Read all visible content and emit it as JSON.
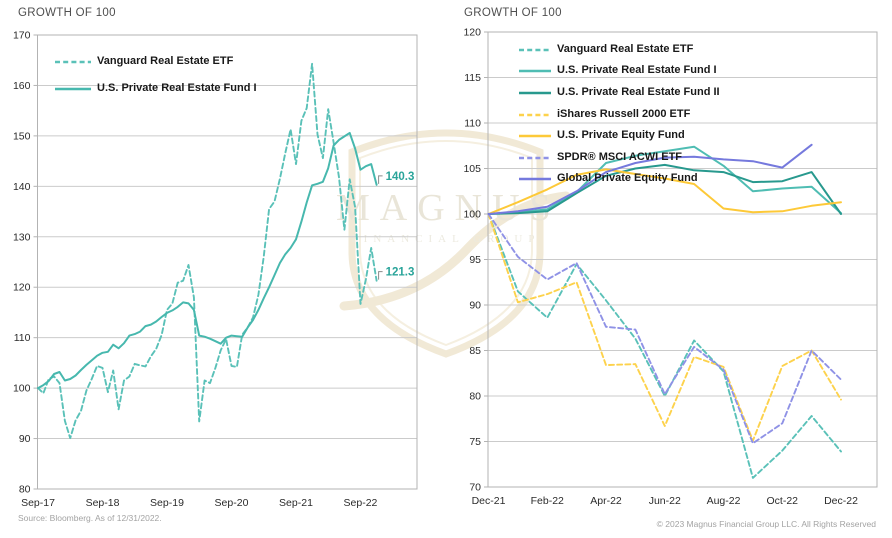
{
  "page": {
    "background": "#ffffff"
  },
  "watermark": {
    "name": "MAGNUS",
    "subtitle": "FINANCIAL GROUP",
    "shield_color": "#f1e9d6",
    "text_color": "#e9e5d8"
  },
  "footer": {
    "source": "Source: Bloomberg. As of 12/31/2022.",
    "copyright": "© 2023 Magnus Financial Group LLC. All Rights Reserved"
  },
  "colors": {
    "grid": "#cbcbcb",
    "plot_border": "#b3b3b3",
    "annotation_teal": "#2aa49a",
    "title_gray": "#4f4f4f",
    "footer_gray": "#a3a3a3"
  },
  "chart_data": [
    {
      "type": "line",
      "title": "GROWTH OF 100",
      "x_tick_labels": [
        "Sep-17",
        "Sep-18",
        "Sep-19",
        "Sep-20",
        "Sep-21",
        "Sep-22"
      ],
      "x_tick_indices": [
        0,
        12,
        24,
        36,
        48,
        60
      ],
      "x_count": 64,
      "x_unit": "monthly, Sep-2017 through Dec-2022",
      "ylim": [
        80,
        170
      ],
      "ytick_step": 10,
      "grid": "horizontal",
      "legend_position": "top-left-inside",
      "series": [
        {
          "name": "Vanguard Real Estate ETF",
          "color": "#5ac1b8",
          "dash": true,
          "values": [
            100,
            99,
            101.8,
            102.3,
            101,
            93.5,
            90.1,
            93.6,
            95.5,
            99.5,
            101.8,
            104.4,
            104,
            99.2,
            103.5,
            95.8,
            101.5,
            102.3,
            104.8,
            104.5,
            104.3,
            106.3,
            107.8,
            110.5,
            115.5,
            116.8,
            120.9,
            121.3,
            124.4,
            118,
            93.4,
            101.5,
            101,
            104,
            107.5,
            109.7,
            104.4,
            104.2,
            110.6,
            112,
            114,
            118.5,
            126,
            135.5,
            137,
            141.5,
            146.5,
            151.3,
            144.4,
            153,
            155.5,
            164.3,
            150.3,
            145.6,
            155.3,
            148.7,
            141.8,
            131.4,
            141.4,
            135.9,
            116.7,
            121.6,
            127.8,
            121.3
          ]
        },
        {
          "name": "U.S. Private Real Estate Fund I",
          "color": "#47b8ae",
          "dash": false,
          "values": [
            100,
            100.6,
            101.4,
            102.8,
            103.2,
            101.5,
            101.8,
            102.5,
            103.6,
            104.6,
            105.5,
            106.4,
            107,
            107.2,
            108.6,
            107.9,
            108.9,
            110.4,
            110.7,
            111.2,
            112.3,
            112.6,
            113.2,
            114.1,
            114.9,
            115.4,
            116.1,
            117,
            116.8,
            115.5,
            110.4,
            110.2,
            109.8,
            109.3,
            108.8,
            110,
            110.4,
            110.3,
            110.2,
            112,
            113.5,
            115.5,
            117.8,
            120,
            122.4,
            124.8,
            126.5,
            127.8,
            129.5,
            133,
            136.8,
            140.2,
            140.5,
            140.9,
            143.6,
            148.1,
            149.2,
            149.9,
            150.6,
            147.5,
            143.3,
            144,
            144.4,
            140.3
          ]
        }
      ],
      "annotations": [
        {
          "text": "140.3",
          "series_index": 1,
          "color": "#2aa49a"
        },
        {
          "text": "121.3",
          "series_index": 0,
          "color": "#2aa49a"
        }
      ]
    },
    {
      "type": "line",
      "title": "GROWTH OF 100",
      "x_tick_labels": [
        "Dec-21",
        "Feb-22",
        "Apr-22",
        "Jun-22",
        "Aug-22",
        "Oct-22",
        "Dec-22"
      ],
      "x_tick_indices": [
        0,
        2,
        4,
        6,
        8,
        10,
        12
      ],
      "x_count": 13,
      "x_unit": "monthly, Dec-2021 through Dec-2022",
      "ylim": [
        70,
        120
      ],
      "ytick_step": 5,
      "grid": "horizontal",
      "legend_position": "top-left-inside",
      "series": [
        {
          "name": "Vanguard Real Estate ETF",
          "color": "#5ac1b8",
          "dash": true,
          "values": [
            100,
            91.5,
            88.6,
            94.5,
            90.5,
            86.3,
            80,
            86.1,
            82.7,
            71,
            74,
            77.8,
            73.9
          ]
        },
        {
          "name": "U.S. Private Real Estate Fund I",
          "color": "#4fbdb3",
          "dash": false,
          "values": [
            100,
            100.2,
            100.5,
            102.4,
            105.6,
            106.4,
            106.9,
            107.4,
            105.3,
            102.5,
            102.8,
            103,
            100.1
          ]
        },
        {
          "name": "U.S. Private Real Estate Fund II",
          "color": "#28998e",
          "dash": false,
          "values": [
            100,
            100.1,
            100.3,
            102.3,
            104.2,
            105,
            105.4,
            104.8,
            104.6,
            103.5,
            103.6,
            104.6,
            100
          ]
        },
        {
          "name": "iShares Russell 2000 ETF",
          "color": "#fdd24c",
          "dash": true,
          "values": [
            100,
            90.3,
            91.2,
            92.5,
            83.4,
            83.5,
            76.7,
            84.3,
            83.2,
            75.1,
            83.3,
            85,
            79.6
          ]
        },
        {
          "name": "U.S. Private Equity Fund",
          "color": "#fdc938",
          "dash": false,
          "values": [
            100,
            101.3,
            102.7,
            104.3,
            104.9,
            104.4,
            103.9,
            103.3,
            100.6,
            100.2,
            100.3,
            100.9,
            101.3
          ]
        },
        {
          "name": "SPDR® MSCI ACWI ETF",
          "color": "#8f92e6",
          "dash": true,
          "values": [
            100,
            95.3,
            92.8,
            94.6,
            87.6,
            87.3,
            80.2,
            85.4,
            82.9,
            74.8,
            77,
            85,
            81.8
          ]
        },
        {
          "name": "Global Private Equity Fund",
          "color": "#7579dd",
          "dash": false,
          "values": [
            100,
            100.3,
            100.8,
            102.5,
            104.6,
            105.6,
            106.2,
            106.3,
            106,
            105.8,
            105.1,
            107.6,
            null
          ]
        }
      ],
      "annotations": []
    }
  ]
}
